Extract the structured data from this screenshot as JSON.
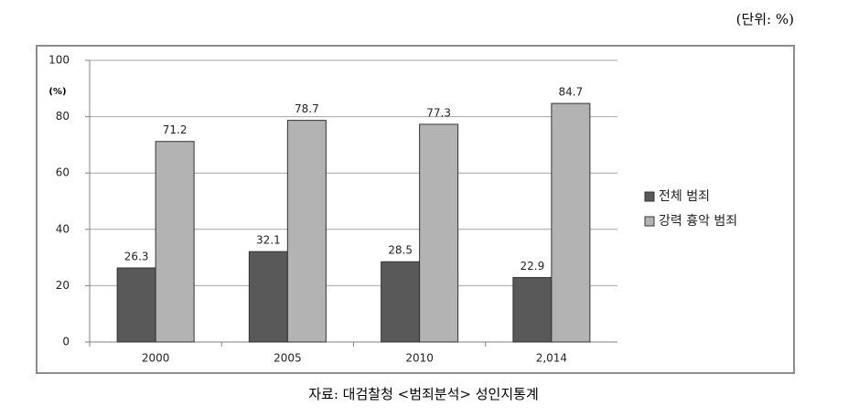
{
  "chart_data": {
    "type": "bar",
    "unit_note": "(단위: %)",
    "y_label": "(%)",
    "source": "자료: 대검찰청 <범죄분석> 성인지통계",
    "categories": [
      "2000",
      "2005",
      "2010",
      "2,014"
    ],
    "series": [
      {
        "name": "전체 범죄",
        "color": "#595959",
        "values": [
          26.3,
          32.1,
          28.5,
          22.9
        ]
      },
      {
        "name": "강력 흉악 범죄",
        "color": "#b3b3b3",
        "values": [
          71.2,
          78.7,
          77.3,
          84.7
        ]
      }
    ],
    "ylim": [
      0,
      100
    ],
    "yticks": [
      0,
      20,
      40,
      60,
      80,
      100
    ],
    "grid": true,
    "legend": "right"
  }
}
